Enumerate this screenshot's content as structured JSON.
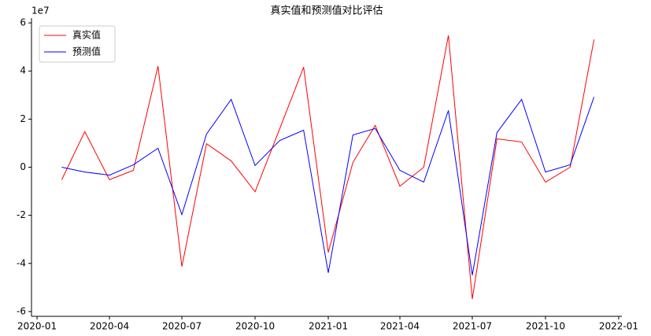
{
  "chart_data": {
    "type": "line",
    "title": "真实值和预测值对比评估",
    "y_offset_label": "1e7",
    "x": [
      "2020-02",
      "2020-03",
      "2020-04",
      "2020-05",
      "2020-06",
      "2020-07",
      "2020-08",
      "2020-09",
      "2020-10",
      "2020-11",
      "2020-12",
      "2021-01",
      "2021-02",
      "2021-03",
      "2021-04",
      "2021-05",
      "2021-06",
      "2021-07",
      "2021-08",
      "2021-09",
      "2021-10",
      "2021-11",
      "2021-12"
    ],
    "series": [
      {
        "name": "真实值",
        "color": "#ff0000",
        "values": [
          -0.52,
          1.48,
          -0.52,
          -0.13,
          4.2,
          -4.13,
          0.98,
          0.26,
          -1.02,
          1.6,
          4.16,
          -3.54,
          0.2,
          1.74,
          -0.79,
          0,
          5.48,
          -5.48,
          1.18,
          1.05,
          -0.62,
          0,
          5.31
        ]
      },
      {
        "name": "预测值",
        "color": "#0000ff",
        "values": [
          0,
          -0.2,
          -0.33,
          0.1,
          0.79,
          -1.97,
          1.38,
          2.82,
          0.07,
          1.11,
          1.54,
          -4.39,
          1.34,
          1.61,
          -0.13,
          -0.62,
          2.36,
          -4.49,
          1.44,
          2.82,
          -0.2,
          0.1,
          2.92
        ]
      }
    ],
    "xlim": [
      "2019-12-25",
      "2022-01-05"
    ],
    "xticks": [
      "2020-01",
      "2020-04",
      "2020-07",
      "2020-10",
      "2021-01",
      "2021-04",
      "2021-07",
      "2021-10",
      "2022-01"
    ],
    "ylim": [
      -6.2,
      6.2
    ],
    "yticks": [
      -6,
      -4,
      -2,
      0,
      2,
      4,
      6
    ],
    "legend": "upper left"
  }
}
